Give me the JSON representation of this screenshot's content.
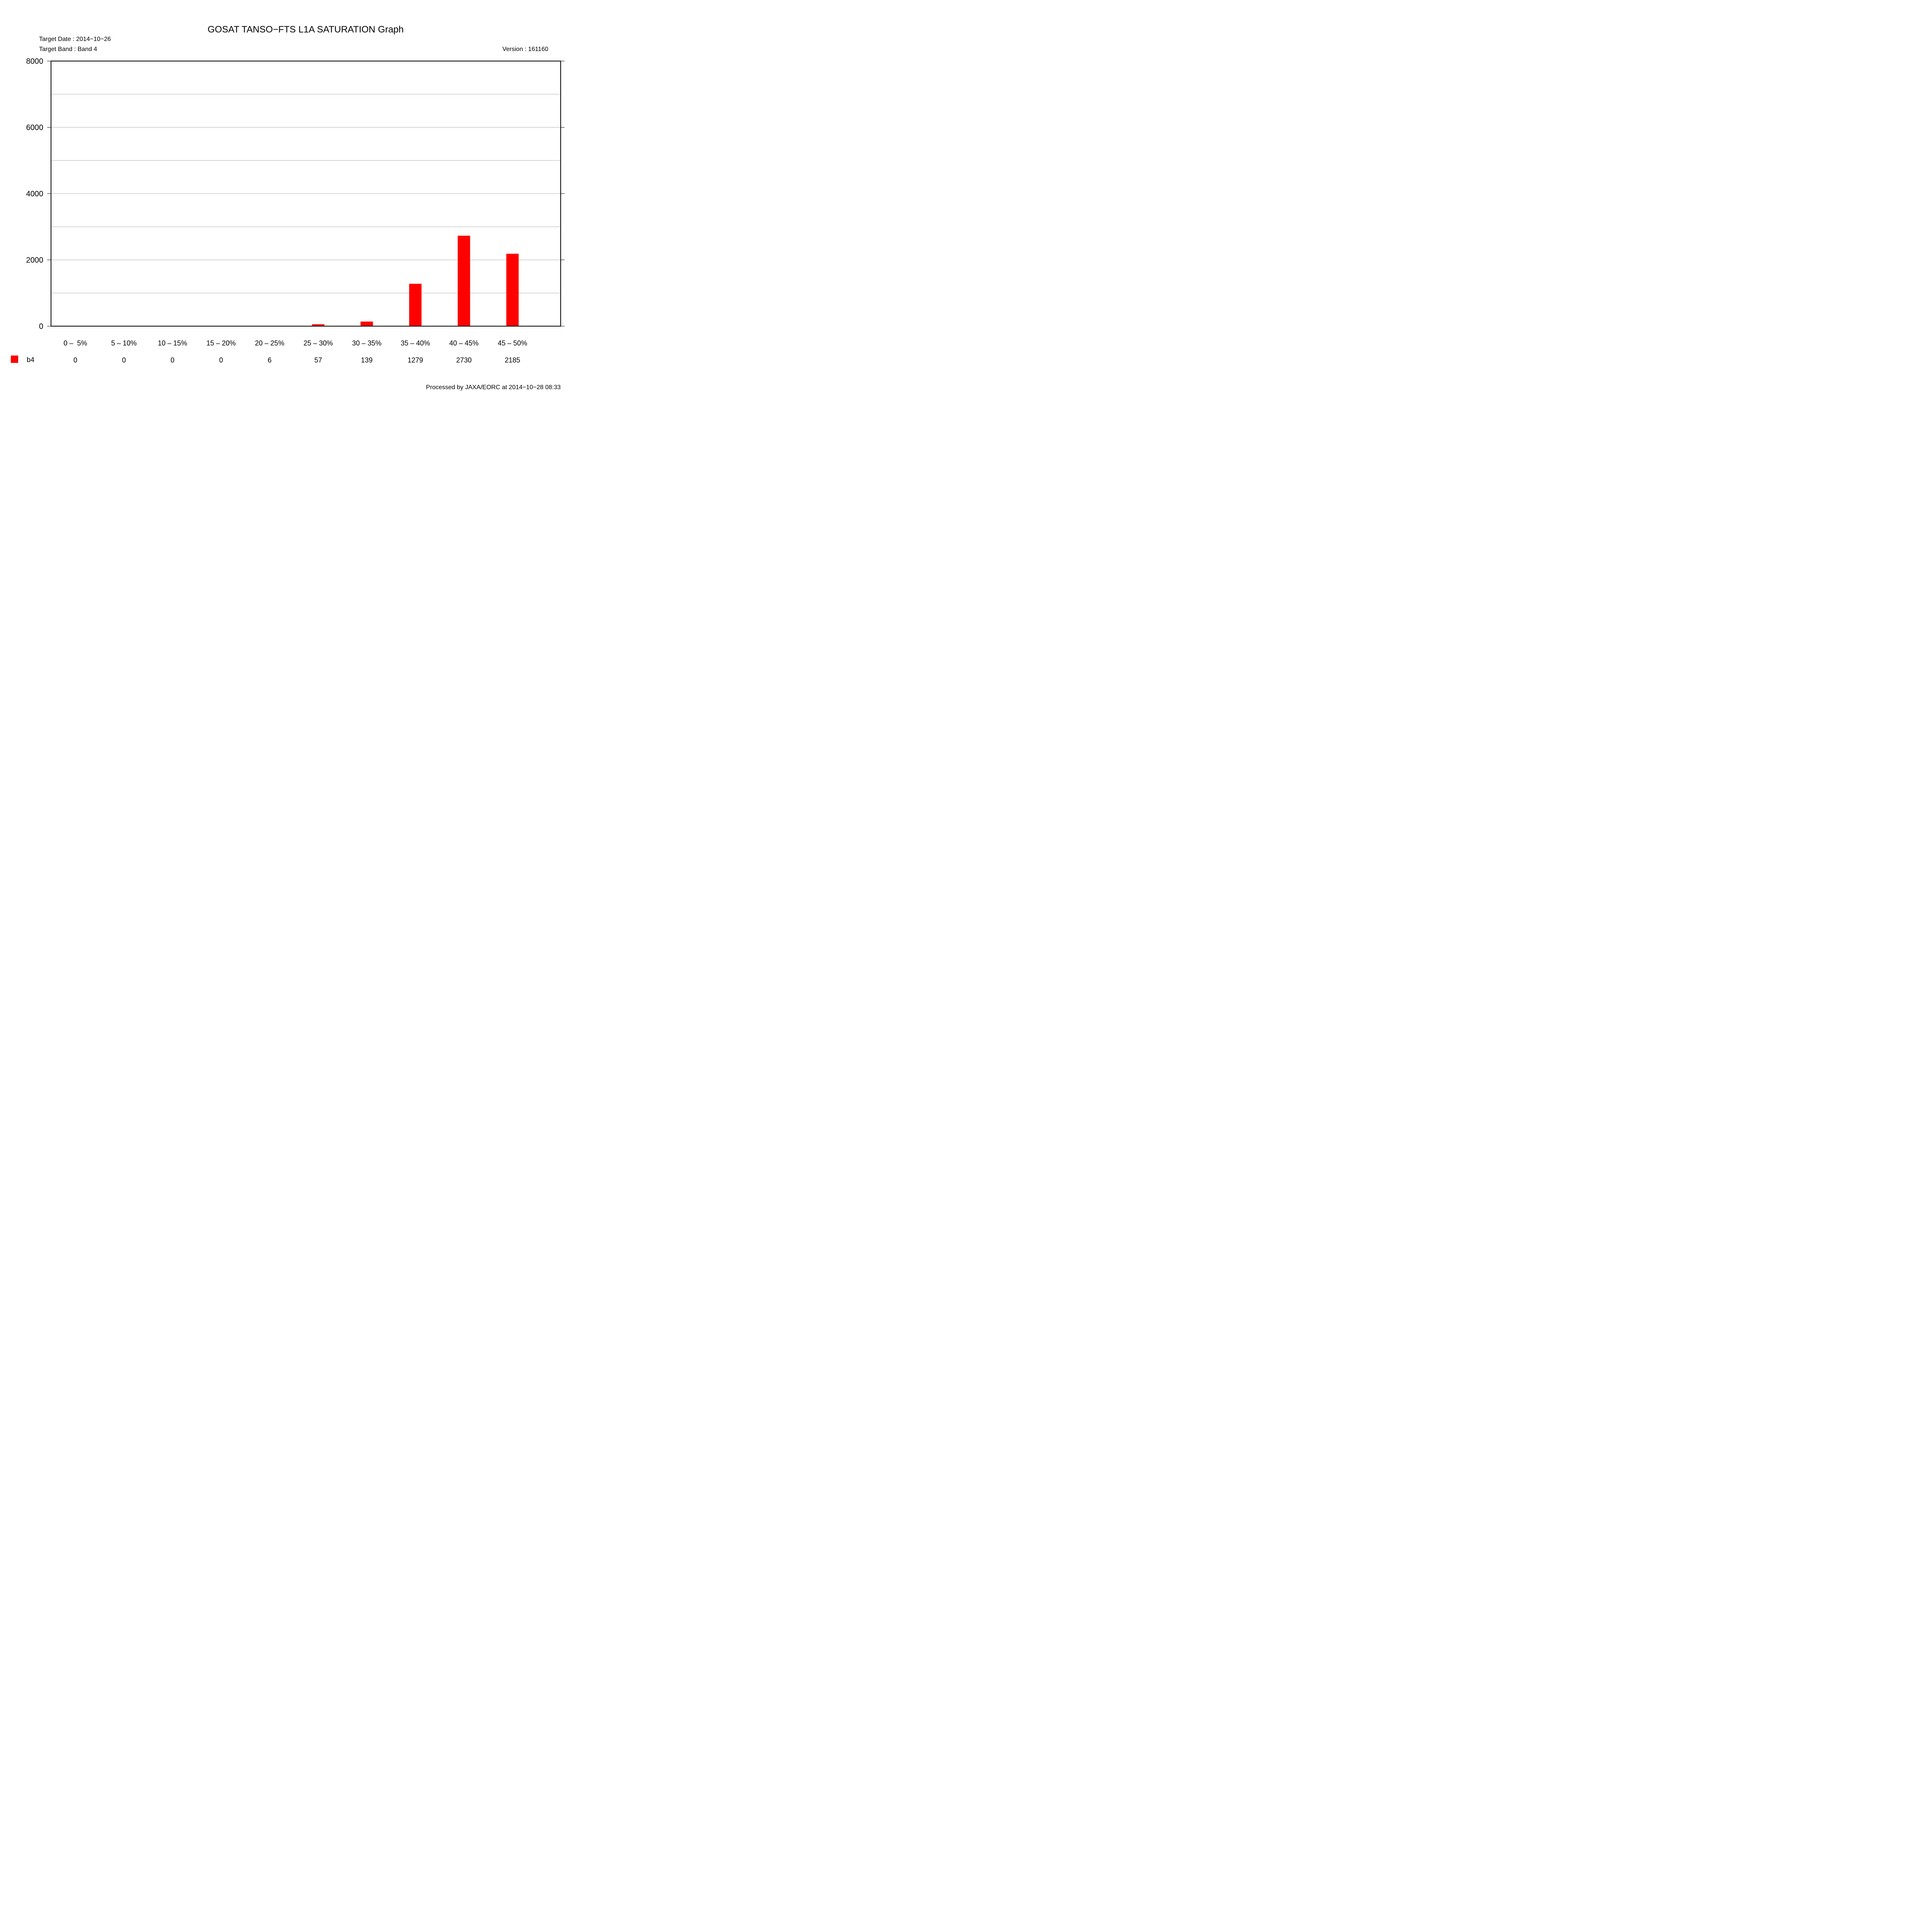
{
  "chart_data": {
    "type": "bar",
    "title": "GOSAT TANSO−FTS L1A SATURATION Graph",
    "target_date": "Target Date : 2014−10−26",
    "target_band": "Target Band : Band 4",
    "version": "Version : 161160",
    "processed_by": "Processed by JAXA/EORC at 2014−10−28 08:33",
    "categories": [
      "0 –  5%",
      "5 – 10%",
      "10 – 15%",
      "15 – 20%",
      "20 – 25%",
      "25 – 30%",
      "30 – 35%",
      "35 – 40%",
      "40 – 45%",
      "45 – 50%"
    ],
    "series": [
      {
        "name": "b4",
        "color": "#ff0000",
        "values": [
          0,
          0,
          0,
          0,
          6,
          57,
          139,
          1279,
          2730,
          2185
        ],
        "value_labels": [
          "0",
          "0",
          "0",
          "0",
          "6",
          "57",
          "139",
          "1279",
          "2730",
          "2185"
        ]
      }
    ],
    "ylim": [
      0,
      8000
    ],
    "yticks": [
      0,
      2000,
      4000,
      6000,
      8000
    ],
    "ytick_labels": [
      "0",
      "2000",
      "4000",
      "6000",
      "8000"
    ],
    "gridlines": [
      1000,
      2000,
      3000,
      4000,
      5000,
      6000,
      7000
    ],
    "grid": true,
    "xlabel": "",
    "ylabel": ""
  }
}
